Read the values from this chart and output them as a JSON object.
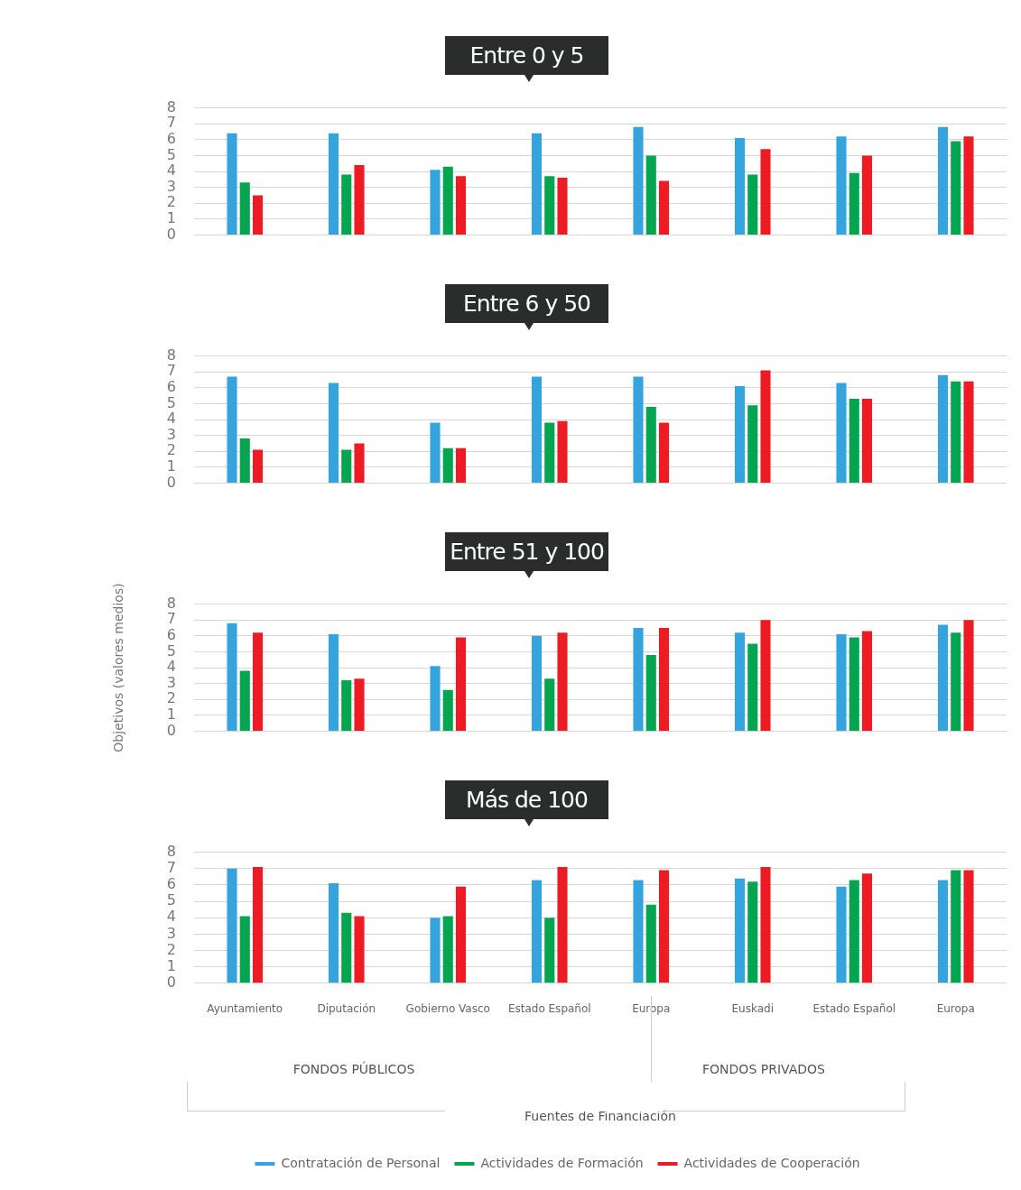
{
  "chart_data": [
    {
      "type": "bar",
      "title": "Entre 0 y 5",
      "categories": [
        null,
        null,
        null,
        null,
        null,
        null,
        null,
        null
      ],
      "ylim": [
        0,
        8
      ],
      "yticks": [
        0,
        1,
        2,
        3,
        4,
        5,
        6,
        7,
        8
      ],
      "grid": "y",
      "tick_labels": "y",
      "series": [
        {
          "color": "#35a3dc",
          "values": [
            6.4,
            6.4,
            4.1,
            6.4,
            6.8,
            6.1,
            6.2,
            6.8
          ]
        },
        {
          "color": "#04a550",
          "values": [
            3.3,
            3.8,
            4.3,
            3.7,
            5.0,
            3.8,
            3.9,
            5.9
          ]
        },
        {
          "color": "#ed1c24",
          "values": [
            2.5,
            4.4,
            3.7,
            3.6,
            3.4,
            5.4,
            5.0,
            6.2
          ]
        }
      ]
    },
    {
      "type": "bar",
      "title": "Entre 6 y 50",
      "categories": [
        null,
        null,
        null,
        null,
        null,
        null,
        null,
        null
      ],
      "ylim": [
        0,
        8
      ],
      "yticks": [
        0,
        1,
        2,
        3,
        4,
        5,
        6,
        7,
        8
      ],
      "grid": "y",
      "tick_labels": "y",
      "series": [
        {
          "color": "#35a3dc",
          "values": [
            6.7,
            6.3,
            3.8,
            6.7,
            6.7,
            6.1,
            6.3,
            6.8
          ]
        },
        {
          "color": "#04a550",
          "values": [
            2.8,
            2.1,
            2.2,
            3.8,
            4.8,
            4.9,
            5.3,
            6.4
          ]
        },
        {
          "color": "#ed1c24",
          "values": [
            2.1,
            2.5,
            2.2,
            3.9,
            3.8,
            7.1,
            5.3,
            6.4
          ]
        }
      ]
    },
    {
      "type": "bar",
      "title": "Entre 51 y 100",
      "ylabel": "Objetivos (valores medios)",
      "categories": [
        null,
        null,
        null,
        null,
        null,
        null,
        null,
        null
      ],
      "ylim": [
        0,
        8
      ],
      "yticks": [
        0,
        1,
        2,
        3,
        4,
        5,
        6,
        7,
        8
      ],
      "grid": "y",
      "tick_labels": "y",
      "series": [
        {
          "color": "#35a3dc",
          "values": [
            6.8,
            6.1,
            4.1,
            6.0,
            6.5,
            6.2,
            6.1,
            6.7
          ]
        },
        {
          "color": "#04a550",
          "values": [
            3.8,
            3.2,
            2.6,
            3.3,
            4.8,
            5.5,
            5.9,
            6.2
          ]
        },
        {
          "color": "#ed1c24",
          "values": [
            6.2,
            3.3,
            5.9,
            6.2,
            6.5,
            7.0,
            6.3,
            7.0
          ]
        }
      ]
    },
    {
      "type": "bar",
      "title": "Más de 100",
      "xlabel": "Fuentes de Financiación",
      "annotations": [
        "FONDOS PÚBLICOS",
        "FONDOS PRIVADOS"
      ],
      "categories": [
        "Ayuntamiento",
        "Diputación",
        "Gobierno Vasco",
        "Estado Español",
        "Europa",
        "Euskadi",
        "Estado Español",
        "Europa"
      ],
      "ylim": [
        0,
        8
      ],
      "yticks": [
        0,
        1,
        2,
        3,
        4,
        5,
        6,
        7,
        8
      ],
      "grid": "y",
      "legend": "bottom",
      "series": [
        {
          "name": "Contratación de Personal",
          "color": "#35a3dc",
          "values": [
            7.0,
            6.1,
            4.0,
            6.3,
            6.3,
            6.4,
            5.9,
            6.3
          ]
        },
        {
          "name": "Actividades de Formación",
          "color": "#04a550",
          "values": [
            4.1,
            4.3,
            4.1,
            4.0,
            4.8,
            6.2,
            6.3,
            6.9
          ]
        },
        {
          "name": "Actividades de Cooperación",
          "color": "#ed1c24",
          "values": [
            7.1,
            4.1,
            5.9,
            7.1,
            6.9,
            7.1,
            6.7,
            6.9
          ]
        }
      ]
    }
  ]
}
